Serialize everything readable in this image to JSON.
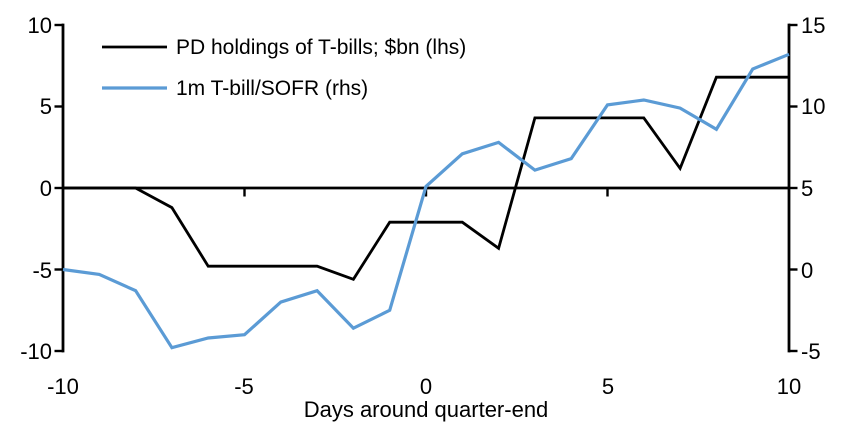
{
  "chart_data": {
    "type": "line",
    "title": "",
    "xlabel": "Days around quarter-end",
    "x": [
      -10,
      -9,
      -8,
      -7,
      -6,
      -5,
      -4,
      -3,
      -2,
      -1,
      0,
      1,
      2,
      3,
      4,
      5,
      6,
      7,
      8,
      9,
      10
    ],
    "series": [
      {
        "name": "PD holdings of T-bills; $bn (lhs)",
        "axis": "left",
        "color": "#000000",
        "values": [
          0,
          0,
          0,
          -1.2,
          -4.8,
          -4.8,
          -4.8,
          -4.8,
          -5.6,
          -2.1,
          -2.1,
          -2.1,
          -3.7,
          4.3,
          4.3,
          4.3,
          4.3,
          1.2,
          6.8,
          6.8,
          6.8
        ]
      },
      {
        "name": "1m T-bill/SOFR (rhs)",
        "axis": "right",
        "color": "#5B9BD5",
        "values": [
          0,
          -0.3,
          -1.3,
          -4.8,
          -4.2,
          -4.0,
          -2.0,
          -1.3,
          -3.6,
          -2.5,
          5.1,
          7.1,
          7.8,
          6.1,
          6.8,
          10.1,
          10.4,
          9.9,
          8.6,
          12.3,
          13.2
        ]
      }
    ],
    "left_axis": {
      "min": -10,
      "max": 10,
      "ticks": [
        "10",
        "5",
        "0",
        "-5",
        "-10"
      ]
    },
    "right_axis": {
      "min": -5,
      "max": 15,
      "ticks": [
        "15",
        "10",
        "5",
        "0",
        "-5"
      ]
    },
    "x_axis": {
      "min": -10,
      "max": 10,
      "tick_values": [
        -5,
        0,
        5
      ],
      "tick_labels": [
        "-10",
        "-5",
        "0",
        "5",
        "10"
      ]
    },
    "legend_position": "top-left",
    "grid": false
  },
  "colors": {
    "background": "#ffffff",
    "axis": "#000000",
    "pd_line": "#000000",
    "sofr_line": "#5B9BD5"
  }
}
